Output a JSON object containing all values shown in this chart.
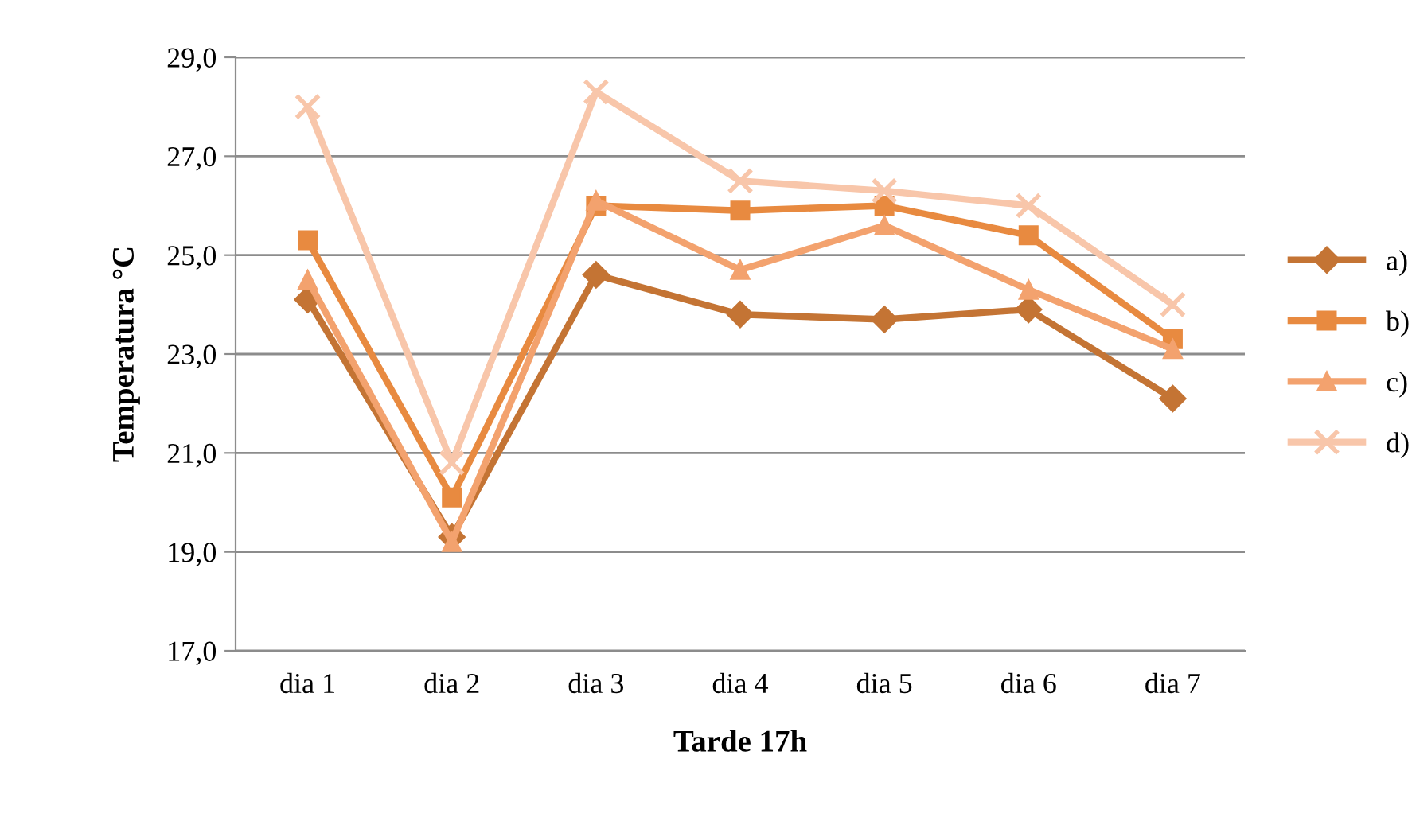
{
  "chart_data": {
    "type": "line",
    "xlabel": "Tarde 17h",
    "ylabel": "Temperatura °C",
    "categories": [
      "dia 1",
      "dia 2",
      "dia 3",
      "dia 4",
      "dia 5",
      "dia 6",
      "dia 7"
    ],
    "ylim": [
      17,
      29
    ],
    "yticks": [
      {
        "value": 17,
        "label": "17,0"
      },
      {
        "value": 19,
        "label": "19,0"
      },
      {
        "value": 21,
        "label": "21,0"
      },
      {
        "value": 23,
        "label": "23,0"
      },
      {
        "value": 25,
        "label": "25,0"
      },
      {
        "value": 27,
        "label": "27,0"
      },
      {
        "value": 29,
        "label": "29,0"
      }
    ],
    "grid": "y",
    "legend": "right",
    "line_style": "solid",
    "series": [
      {
        "name": "a)",
        "color": "#c47434",
        "marker": "diamond",
        "values": [
          24.1,
          19.3,
          24.6,
          23.8,
          23.7,
          23.9,
          22.1
        ]
      },
      {
        "name": "b)",
        "color": "#e88a40",
        "marker": "square",
        "values": [
          25.3,
          20.1,
          26.0,
          25.9,
          26.0,
          25.4,
          23.3
        ]
      },
      {
        "name": "c)",
        "color": "#f3a26e",
        "marker": "triangle",
        "values": [
          24.5,
          19.2,
          26.1,
          24.7,
          25.6,
          24.3,
          23.1
        ]
      },
      {
        "name": "d)",
        "color": "#f8c6aa",
        "marker": "cross",
        "values": [
          28.0,
          20.8,
          28.3,
          26.5,
          26.3,
          26.0,
          24.0
        ]
      }
    ]
  }
}
